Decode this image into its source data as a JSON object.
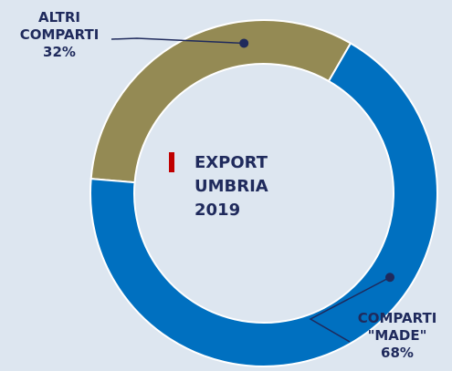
{
  "chart_data": {
    "type": "donut",
    "title": "EXPORT UMBRIA 2019",
    "categories": [
      "ALTRI COMPARTI",
      "COMPARTI \"MADE\""
    ],
    "values": [
      32,
      68
    ],
    "value_labels": [
      "32%",
      "68%"
    ],
    "colors": [
      "#948a54",
      "#0070c0"
    ]
  }
}
